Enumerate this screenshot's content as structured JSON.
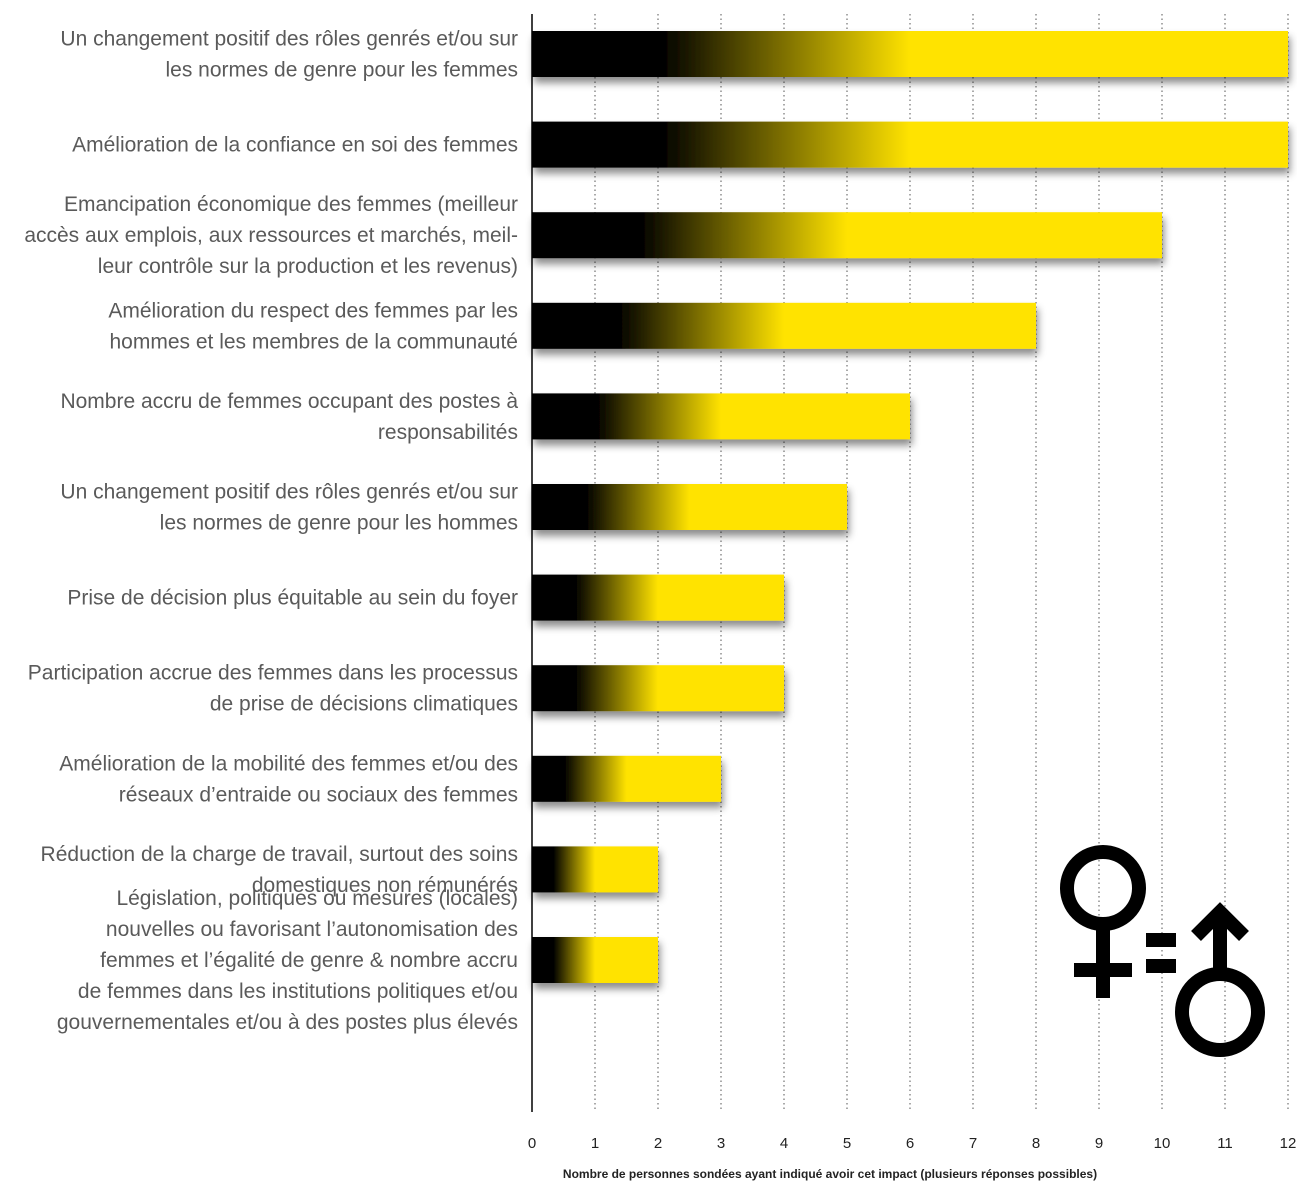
{
  "chart_data": {
    "type": "bar",
    "orientation": "horizontal",
    "categories": [
      [
        "Un changement positif des rôles genrés et/ou sur",
        "les normes de genre pour les femmes"
      ],
      [
        "Amélioration de la confiance en soi des femmes"
      ],
      [
        "Emancipation économique des femmes (meilleur",
        "accès aux emplois, aux ressources et marchés, meil-",
        "leur contrôle sur la production et les revenus)"
      ],
      [
        "Amélioration du respect des femmes par les",
        "hommes et les membres de la communauté"
      ],
      [
        "Nombre accru de femmes occupant des postes à",
        "responsabilités"
      ],
      [
        "Un changement positif des rôles genrés et/ou sur",
        "les normes de genre pour les hommes"
      ],
      [
        "Prise de décision plus équitable au sein du foyer"
      ],
      [
        "Participation accrue des femmes dans les processus",
        "de prise de décisions climatiques"
      ],
      [
        "Amélioration de la mobilité des femmes et/ou des",
        "réseaux d’entraide ou sociaux des femmes"
      ],
      [
        "Réduction de la charge de travail, surtout des soins",
        "domestiques non rémunérés"
      ],
      [
        "Législation, politiques ou mesures (locales)",
        "nouvelles ou favorisant l’autonomisation des",
        "femmes et l’égalité de genre & nombre accru",
        "de femmes dans les institutions politiques et/ou",
        "gouvernementales et/ou à des postes plus élevés"
      ]
    ],
    "values": [
      12,
      12,
      10,
      8,
      6,
      5,
      4,
      4,
      3,
      2,
      2
    ],
    "xlim": [
      0,
      12
    ],
    "xticks": [
      0,
      1,
      2,
      3,
      4,
      5,
      6,
      7,
      8,
      9,
      10,
      11,
      12
    ],
    "xlabel": "Nombre de personnes sondées ayant indiqué avoir cet impact (plusieurs réponses possibles)",
    "grid": "vertical-dotted",
    "colors": {
      "bar_start": "#000000",
      "bar_end": "#ffe300",
      "grid": "#555555",
      "label": "#5a5a5a"
    },
    "decoration": "female-equals-male-symbol-icon"
  }
}
